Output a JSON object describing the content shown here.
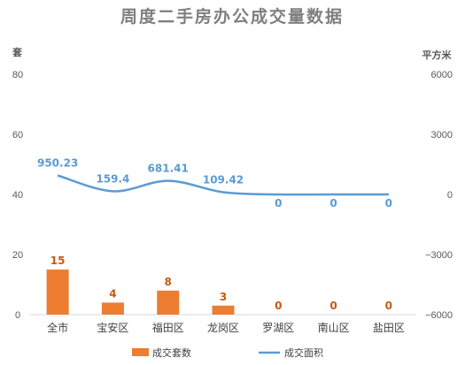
{
  "chart_data": {
    "type": "bar",
    "title": "周度二手房办公成交量数据",
    "categories": [
      "全市",
      "宝安区",
      "福田区",
      "龙岗区",
      "罗湖区",
      "南山区",
      "盐田区"
    ],
    "series": [
      {
        "name": "成交套数",
        "type": "bar",
        "axis": "left",
        "color": "#ed7d31",
        "values": [
          15,
          4,
          8,
          3,
          0,
          0,
          0
        ]
      },
      {
        "name": "成交面积",
        "type": "line",
        "axis": "right",
        "color": "#5b9bd5",
        "values": [
          950.23,
          159.4,
          681.41,
          109.42,
          0,
          0,
          0
        ]
      }
    ],
    "left_axis": {
      "label": "套",
      "range": [
        0,
        80
      ],
      "ticks": [
        "0",
        "20",
        "40",
        "60",
        "80"
      ]
    },
    "right_axis": {
      "label": "平方米",
      "range": [
        -6000,
        6000
      ],
      "ticks": [
        "−6000",
        "−3000",
        "0",
        "3000",
        "6000"
      ]
    },
    "grid": false,
    "legend": "bottom"
  }
}
